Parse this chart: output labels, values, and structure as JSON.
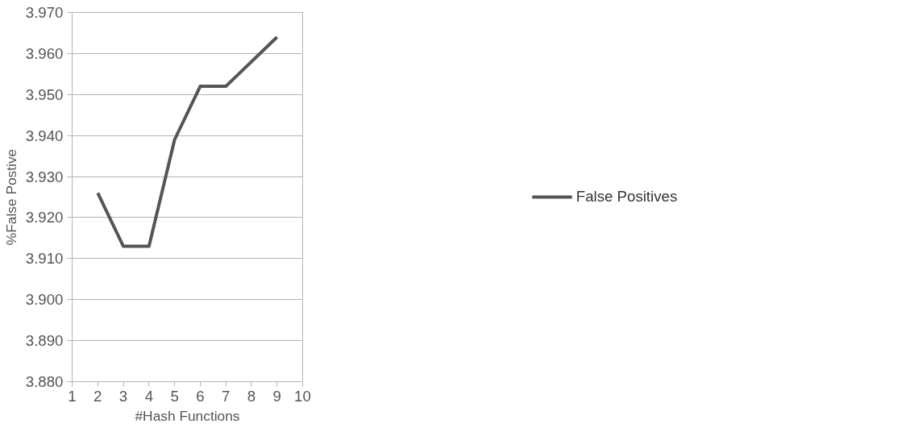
{
  "chart_data": {
    "type": "line",
    "xlabel": "#Hash Functions",
    "ylabel": "%False Postive",
    "x": [
      2,
      3,
      4,
      5,
      6,
      7,
      9
    ],
    "series": [
      {
        "name": "False Positives",
        "color": "#555555",
        "values": [
          3.926,
          3.913,
          3.913,
          3.939,
          3.952,
          3.952,
          3.964
        ]
      }
    ],
    "xlim": [
      1,
      10
    ],
    "xticks": [
      1,
      2,
      3,
      4,
      5,
      6,
      7,
      8,
      9,
      10
    ],
    "ylim": [
      3.88,
      3.97
    ],
    "yticks": [
      {
        "value": 3.88,
        "label": "3.880"
      },
      {
        "value": 3.89,
        "label": "3.890"
      },
      {
        "value": 3.9,
        "label": "3.900"
      },
      {
        "value": 3.91,
        "label": "3.910"
      },
      {
        "value": 3.92,
        "label": "3.920"
      },
      {
        "value": 3.93,
        "label": "3.930"
      },
      {
        "value": 3.94,
        "label": "3.940"
      },
      {
        "value": 3.95,
        "label": "3.950"
      },
      {
        "value": 3.96,
        "label": "3.960"
      },
      {
        "value": 3.97,
        "label": "3.970"
      }
    ],
    "grid": "y",
    "legend": "right",
    "marker": "none",
    "line_style": "solid"
  }
}
